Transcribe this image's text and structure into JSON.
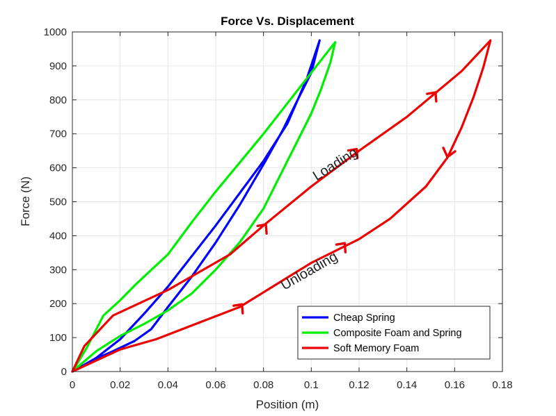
{
  "chart_data": {
    "type": "line",
    "title": "Force Vs. Displacement",
    "xlabel": "Position (m)",
    "ylabel": "Force (N)",
    "xlim": [
      0,
      0.18
    ],
    "ylim": [
      0,
      1000
    ],
    "xticks": [
      0,
      0.02,
      0.04,
      0.06,
      0.08,
      0.1,
      0.12,
      0.14,
      0.16,
      0.18
    ],
    "xtick_labels": [
      "0",
      "0.02",
      "0.04",
      "0.06",
      "0.08",
      "0.1",
      "0.12",
      "0.14",
      "0.16",
      "0.18"
    ],
    "yticks": [
      0,
      100,
      200,
      300,
      400,
      500,
      600,
      700,
      800,
      900,
      1000
    ],
    "ytick_labels": [
      "0",
      "100",
      "200",
      "300",
      "400",
      "500",
      "600",
      "700",
      "800",
      "900",
      "1000"
    ],
    "grid": true,
    "legend_position": "bottom-right",
    "series": [
      {
        "name": "Cheap Spring",
        "color": "#0000ff",
        "x": [
          0,
          0.01,
          0.02,
          0.03,
          0.04,
          0.05,
          0.06,
          0.07,
          0.08,
          0.09,
          0.098,
          0.1035,
          0.1,
          0.095,
          0.088,
          0.08,
          0.07,
          0.06,
          0.05,
          0.04,
          0.033,
          0.026,
          0.017,
          0.01,
          0.005,
          0
        ],
        "y": [
          0,
          40,
          95,
          170,
          250,
          340,
          430,
          525,
          620,
          730,
          860,
          975,
          880,
          810,
          710,
          610,
          490,
          380,
          280,
          190,
          125,
          90,
          60,
          38,
          18,
          0
        ]
      },
      {
        "name": "Composite Foam and Spring",
        "color": "#00ee00",
        "x": [
          0,
          0.006,
          0.013,
          0.02,
          0.027,
          0.04,
          0.05,
          0.06,
          0.07,
          0.08,
          0.09,
          0.1,
          0.11,
          0.108,
          0.104,
          0.1,
          0.095,
          0.09,
          0.08,
          0.07,
          0.06,
          0.05,
          0.04,
          0.03,
          0.02,
          0.01,
          0
        ],
        "y": [
          0,
          70,
          165,
          210,
          260,
          345,
          440,
          530,
          615,
          700,
          790,
          880,
          970,
          910,
          830,
          760,
          690,
          620,
          480,
          380,
          300,
          230,
          180,
          140,
          105,
          60,
          0
        ]
      },
      {
        "name": "Soft Memory Foam",
        "color": "#ee0000",
        "x": [
          0,
          0.005,
          0.017,
          0.04,
          0.066,
          0.08,
          0.1,
          0.12,
          0.14,
          0.163,
          0.175,
          0.172,
          0.168,
          0.163,
          0.157,
          0.148,
          0.133,
          0.12,
          0.1,
          0.07,
          0.035,
          0.02,
          0
        ],
        "y": [
          0,
          75,
          165,
          240,
          345,
          430,
          545,
          650,
          750,
          885,
          975,
          895,
          810,
          720,
          630,
          545,
          450,
          390,
          320,
          190,
          95,
          65,
          0
        ]
      }
    ],
    "annotations": [
      {
        "text": "Loading",
        "x": 0.111,
        "y": 600,
        "rotation": -32
      },
      {
        "text": "Unloading",
        "x": 0.1,
        "y": 285,
        "rotation": -30
      }
    ],
    "arrows": [
      {
        "x": 0.081,
        "y": 433,
        "dir": "left"
      },
      {
        "x": 0.119,
        "y": 655,
        "dir": "left"
      },
      {
        "x": 0.152,
        "y": 822,
        "dir": "left"
      },
      {
        "x": 0.157,
        "y": 632,
        "dir": "down"
      },
      {
        "x": 0.114,
        "y": 378,
        "dir": "left"
      },
      {
        "x": 0.071,
        "y": 198,
        "dir": "left"
      }
    ]
  }
}
